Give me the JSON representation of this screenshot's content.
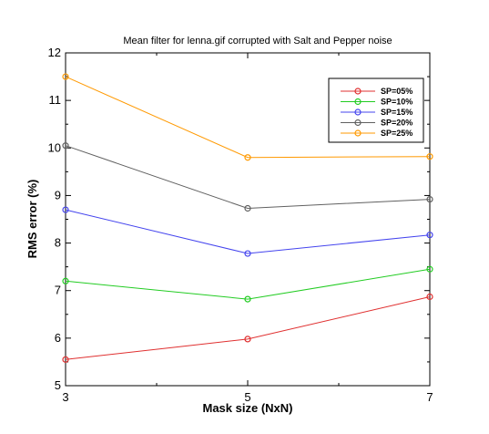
{
  "chart_data": {
    "type": "line",
    "title": "Mean filter for lenna.gif corrupted with Salt and Pepper noise",
    "xlabel": "Mask size (NxN)",
    "ylabel": "RMS error (%)",
    "x": [
      3,
      5,
      7
    ],
    "x_tick_labels": [
      "3",
      "5",
      "7"
    ],
    "xlim": [
      3,
      7
    ],
    "ylim": [
      5,
      12
    ],
    "y_ticks": [
      5,
      6,
      7,
      8,
      9,
      10,
      11,
      12
    ],
    "y_tick_labels": [
      "5",
      "6",
      "7",
      "8",
      "9",
      "10",
      "11",
      "12"
    ],
    "grid": false,
    "legend_position": "top-right",
    "series": [
      {
        "name": "SP=05%",
        "color": "#e03030",
        "values": [
          5.55,
          5.98,
          6.87
        ]
      },
      {
        "name": "SP=10%",
        "color": "#22cc22",
        "values": [
          7.2,
          6.82,
          7.45
        ]
      },
      {
        "name": "SP=15%",
        "color": "#4444ee",
        "values": [
          8.7,
          7.78,
          8.17
        ]
      },
      {
        "name": "SP=20%",
        "color": "#606060",
        "values": [
          10.05,
          8.73,
          8.92
        ]
      },
      {
        "name": "SP=25%",
        "color": "#ff9900",
        "values": [
          11.5,
          9.8,
          9.82
        ]
      }
    ]
  }
}
